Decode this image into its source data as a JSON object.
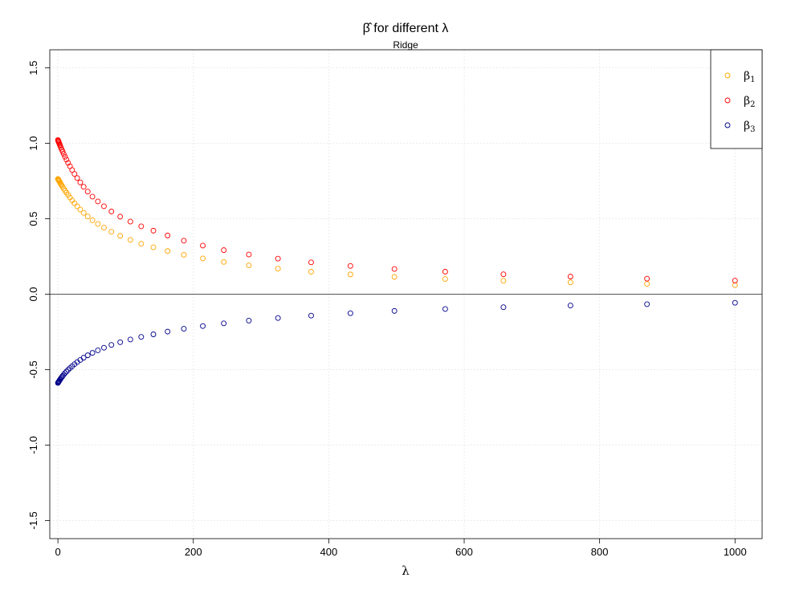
{
  "chart_data": {
    "type": "scatter",
    "title": "β̂ for different λ",
    "subtitle": "Ridge",
    "xlabel": "λ",
    "ylabel": "",
    "xlim": [
      -12,
      1040
    ],
    "ylim": [
      -1.62,
      1.62
    ],
    "x_ticks": [
      "0",
      "200",
      "400",
      "600",
      "800",
      "1000"
    ],
    "y_ticks": [
      "-1.5",
      "-1.0",
      "-0.5",
      "0.0",
      "0.5",
      "1.0",
      "1.5"
    ],
    "grid": true,
    "reference_line_y": 0,
    "legend_position": "top-right",
    "x": [
      0,
      0.3,
      0.6,
      1,
      1.5,
      2,
      2.7,
      3.5,
      4.5,
      5.6,
      7,
      8.6,
      10.5,
      12.6,
      15,
      17.8,
      21,
      24.5,
      28.5,
      33,
      38,
      44,
      51,
      59,
      68,
      79,
      92,
      107,
      123,
      141,
      162,
      186,
      214,
      245,
      282,
      325,
      374,
      432,
      497,
      572,
      658,
      757,
      870,
      1000
    ],
    "series": [
      {
        "name": "β1",
        "color": "#FFA500",
        "values": [
          0.764,
          0.762,
          0.76,
          0.757,
          0.753,
          0.749,
          0.743,
          0.737,
          0.729,
          0.721,
          0.711,
          0.7,
          0.687,
          0.673,
          0.658,
          0.641,
          0.622,
          0.603,
          0.583,
          0.561,
          0.539,
          0.515,
          0.49,
          0.466,
          0.441,
          0.414,
          0.387,
          0.36,
          0.335,
          0.311,
          0.286,
          0.261,
          0.237,
          0.214,
          0.191,
          0.169,
          0.149,
          0.131,
          0.115,
          0.101,
          0.089,
          0.078,
          0.069,
          0.061
        ]
      },
      {
        "name": "β2",
        "color": "#FF0000",
        "values": [
          1.022,
          1.018,
          1.015,
          1.011,
          1.005,
          0.999,
          0.991,
          0.982,
          0.971,
          0.959,
          0.945,
          0.929,
          0.911,
          0.892,
          0.871,
          0.848,
          0.823,
          0.797,
          0.77,
          0.741,
          0.712,
          0.68,
          0.647,
          0.615,
          0.583,
          0.548,
          0.514,
          0.481,
          0.45,
          0.421,
          0.389,
          0.355,
          0.322,
          0.292,
          0.263,
          0.236,
          0.211,
          0.187,
          0.167,
          0.149,
          0.132,
          0.117,
          0.103,
          0.09
        ]
      },
      {
        "name": "β3",
        "color": "#00008B",
        "values": [
          -0.588,
          -0.586,
          -0.584,
          -0.581,
          -0.578,
          -0.574,
          -0.569,
          -0.564,
          -0.557,
          -0.55,
          -0.542,
          -0.533,
          -0.523,
          -0.513,
          -0.502,
          -0.49,
          -0.477,
          -0.464,
          -0.45,
          -0.436,
          -0.421,
          -0.405,
          -0.389,
          -0.372,
          -0.355,
          -0.336,
          -0.318,
          -0.3,
          -0.283,
          -0.266,
          -0.248,
          -0.229,
          -0.211,
          -0.193,
          -0.175,
          -0.158,
          -0.142,
          -0.126,
          -0.111,
          -0.098,
          -0.086,
          -0.075,
          -0.066,
          -0.057
        ]
      }
    ]
  }
}
